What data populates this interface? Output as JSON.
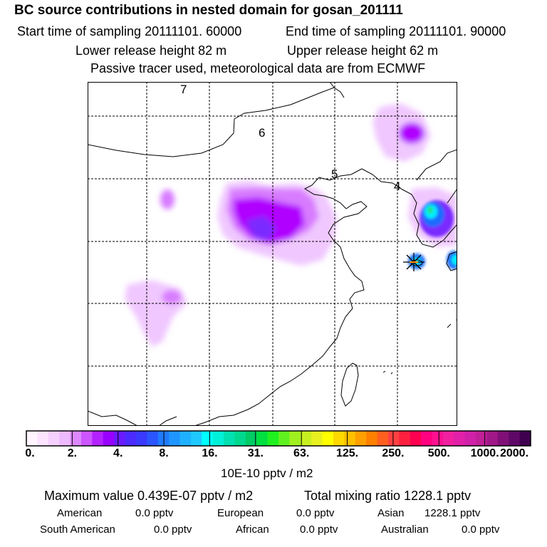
{
  "header": {
    "title": "BC  source contributions in nested domain for gosan_201111",
    "start_label": "Start time of sampling 20111101. 60000",
    "end_label": "End time of sampling 20111101. 90000",
    "lower_label": "Lower release height   82 m",
    "upper_label": "Upper release height   62 m",
    "info": "Passive tracer used, meteorological data are from ECMWF"
  },
  "map": {
    "day_labels": [
      "7",
      "6",
      "5",
      "4"
    ],
    "receptor_marker": "star-receptor",
    "contour_colors": {
      "light": "#f0c8ff",
      "mid": "#d87cff",
      "purple": "#b000ff",
      "deep": "#7a2bff",
      "blue": "#1a6cff",
      "cyan": "#00f0ff",
      "green": "#20e070"
    }
  },
  "colorbar": {
    "tick_labels": [
      "0.",
      "2.",
      "4.",
      "8.",
      "16.",
      "31.",
      "63.",
      "125.",
      "250.",
      "500.",
      "1000.",
      "2000."
    ],
    "colors": [
      "#fff4ff",
      "#fbe4ff",
      "#f6d0ff",
      "#eebaff",
      "#dd88ff",
      "#cc55ff",
      "#b322ff",
      "#9900ff",
      "#6a1aff",
      "#4b2bff",
      "#3a3aff",
      "#2a55ff",
      "#1f7aff",
      "#1f95ff",
      "#1fb0ff",
      "#1fc8ff",
      "#00ffff",
      "#00f0d8",
      "#00e0b0",
      "#00d890",
      "#00cc66",
      "#00e040",
      "#20f020",
      "#60f020",
      "#a0f020",
      "#c8f020",
      "#e8f020",
      "#ffff00",
      "#ffd800",
      "#ffc000",
      "#ffa000",
      "#ff8000",
      "#ff6020",
      "#ff4040",
      "#ff2040",
      "#ff0050",
      "#ff0080",
      "#ff1090",
      "#f020a0",
      "#e020a8",
      "#d020a8",
      "#c02098",
      "#a01888",
      "#801078",
      "#600868",
      "#400050"
    ],
    "units": "10E-10 pptv / m2"
  },
  "summary": {
    "max_value": "Maximum value  0.439E-07 pptv / m2",
    "total_mixing": "Total mixing ratio      1228.1 pptv",
    "american": "American",
    "american_val": "0.0 pptv",
    "european": "European",
    "european_val": "0.0 pptv",
    "asian": "Asian",
    "asian_val": "1228.1 pptv",
    "south_american": "South American",
    "south_american_val": "0.0 pptv",
    "african": "African",
    "african_val": "0.0 pptv",
    "australian": "Australian",
    "australian_val": "0.0 pptv"
  }
}
